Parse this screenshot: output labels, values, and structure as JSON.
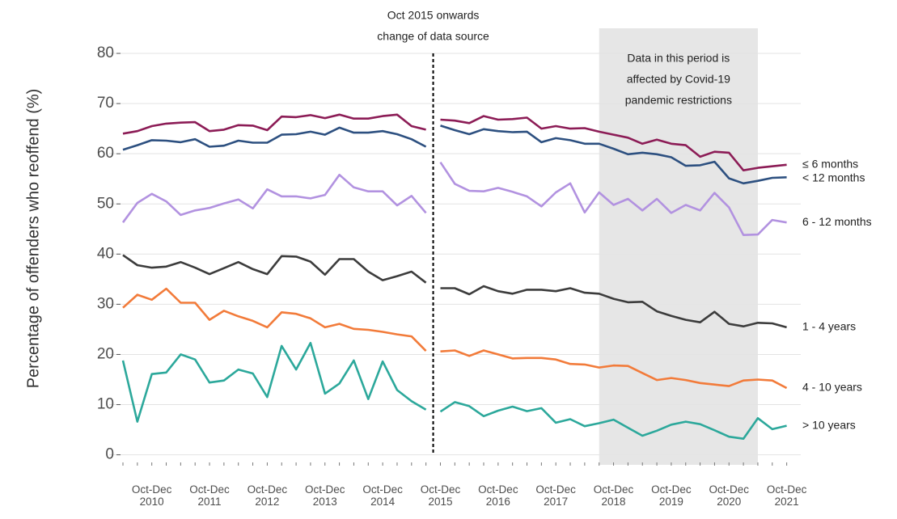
{
  "chart_data": {
    "type": "line",
    "y_label": "Percentage of offenders who reoffend (%)",
    "categories": [
      null,
      null,
      "Oct-Dec 2010",
      null,
      null,
      null,
      "Oct-Dec 2011",
      null,
      null,
      null,
      "Oct-Dec 2012",
      null,
      null,
      null,
      "Oct-Dec 2013",
      null,
      null,
      null,
      "Oct-Dec 2014",
      null,
      null,
      null,
      "Oct-Dec 2015",
      null,
      null,
      null,
      "Oct-Dec 2016",
      null,
      null,
      null,
      "Oct-Dec 2017",
      null,
      null,
      null,
      "Oct-Dec 2018",
      null,
      null,
      null,
      "Oct-Dec 2019",
      null,
      null,
      null,
      "Oct-Dec 2020",
      null,
      null,
      null,
      "Oct-Dec 2021"
    ],
    "ylim": [
      -2,
      85
    ],
    "yticks": [
      0,
      10,
      20,
      30,
      40,
      50,
      60,
      70,
      80
    ],
    "grid": true,
    "break_at": 22,
    "break_annotation": [
      "Oct 2015 onwards",
      "change of data source"
    ],
    "shade": {
      "from": 33,
      "to": 44,
      "color": "#e6e6e6",
      "label": [
        "Data in this period is",
        "affected by Covid-19",
        "pandemic restrictions"
      ]
    },
    "series": [
      {
        "name": "≤ 6 months",
        "color": "#8c1c56",
        "values": [
          64,
          64.5,
          65.5,
          66,
          66.2,
          66.3,
          64.5,
          64.8,
          65.7,
          65.6,
          64.7,
          67.4,
          67.3,
          67.7,
          67.1,
          67.8,
          67,
          67,
          67.5,
          67.8,
          65.5,
          64.8,
          66.8,
          66.6,
          66.1,
          67.5,
          66.8,
          66.9,
          67.2,
          65,
          65.5,
          65,
          65.1,
          64.4,
          63.8,
          63.2,
          62,
          62.8,
          62,
          61.7,
          59.4,
          60.4,
          60.2,
          56.7,
          57.2,
          57.5,
          57.8
        ]
      },
      {
        "name": "< 12 months",
        "color": "#2d5080",
        "values": [
          60.8,
          61.7,
          62.7,
          62.6,
          62.3,
          62.9,
          61.4,
          61.6,
          62.6,
          62.2,
          62.2,
          63.8,
          63.9,
          64.4,
          63.8,
          65.2,
          64.2,
          64.2,
          64.5,
          63.9,
          62.9,
          61.4,
          65.6,
          64.7,
          63.9,
          64.9,
          64.5,
          64.3,
          64.4,
          62.3,
          63.1,
          62.7,
          62,
          62,
          61,
          59.9,
          60.2,
          59.9,
          59.3,
          57.6,
          57.7,
          58.4,
          55.1,
          54.1,
          54.6,
          55.2,
          55.3
        ]
      },
      {
        "name": "6 - 12 months",
        "color": "#b292e0",
        "values": [
          46.3,
          50.2,
          52,
          50.5,
          47.8,
          48.7,
          49.2,
          50.1,
          50.9,
          49.1,
          52.9,
          51.5,
          51.5,
          51.1,
          51.8,
          55.8,
          53.3,
          52.5,
          52.5,
          49.7,
          51.6,
          48.2,
          58.3,
          54,
          52.6,
          52.5,
          53.2,
          52.4,
          51.5,
          49.5,
          52.3,
          54.1,
          48.3,
          52.3,
          49.8,
          51,
          48.7,
          51,
          48.2,
          49.8,
          48.7,
          52.2,
          49.3,
          43.8,
          43.9,
          46.8,
          46.3
        ]
      },
      {
        "name": "1 - 4 years",
        "color": "#3c3c3c",
        "values": [
          39.8,
          37.8,
          37.3,
          37.5,
          38.4,
          37.3,
          36,
          37.2,
          38.4,
          37,
          36,
          39.6,
          39.5,
          38.5,
          35.9,
          39,
          39,
          36.5,
          34.8,
          35.6,
          36.5,
          34.3,
          33.2,
          33.2,
          32,
          33.6,
          32.6,
          32.1,
          32.9,
          32.9,
          32.6,
          33.2,
          32.3,
          32.1,
          31.1,
          30.4,
          30.5,
          28.6,
          27.7,
          26.9,
          26.4,
          28.5,
          26.1,
          25.6,
          26.3,
          26.2,
          25.4
        ]
      },
      {
        "name": "4 - 10 years",
        "color": "#f27b3a",
        "values": [
          29.3,
          31.9,
          30.9,
          33.1,
          30.3,
          30.3,
          26.9,
          28.7,
          27.6,
          26.7,
          25.4,
          28.4,
          28.1,
          27.2,
          25.4,
          26.1,
          25.1,
          24.9,
          24.5,
          24,
          23.6,
          20.7,
          20.6,
          20.8,
          19.7,
          20.8,
          20,
          19.2,
          19.3,
          19.3,
          19,
          18.1,
          18,
          17.4,
          17.8,
          17.7,
          16.3,
          14.9,
          15.3,
          14.9,
          14.3,
          14,
          13.7,
          14.8,
          15,
          14.8,
          13.3
        ]
      },
      {
        "name": "> 10 years",
        "color": "#2ca89b",
        "values": [
          18.8,
          6.6,
          16.1,
          16.4,
          20,
          19,
          14.4,
          14.8,
          17,
          16.2,
          11.5,
          21.7,
          17,
          22.3,
          12.2,
          14.2,
          18.8,
          11.1,
          18.6,
          12.9,
          10.7,
          9,
          8.6,
          10.5,
          9.7,
          7.7,
          8.8,
          9.6,
          8.7,
          9.3,
          6.4,
          7.1,
          5.7,
          6.3,
          7,
          5.4,
          3.8,
          4.8,
          6,
          6.6,
          6.1,
          4.9,
          3.6,
          3.2,
          7.3,
          5.1,
          5.8
        ]
      }
    ]
  }
}
